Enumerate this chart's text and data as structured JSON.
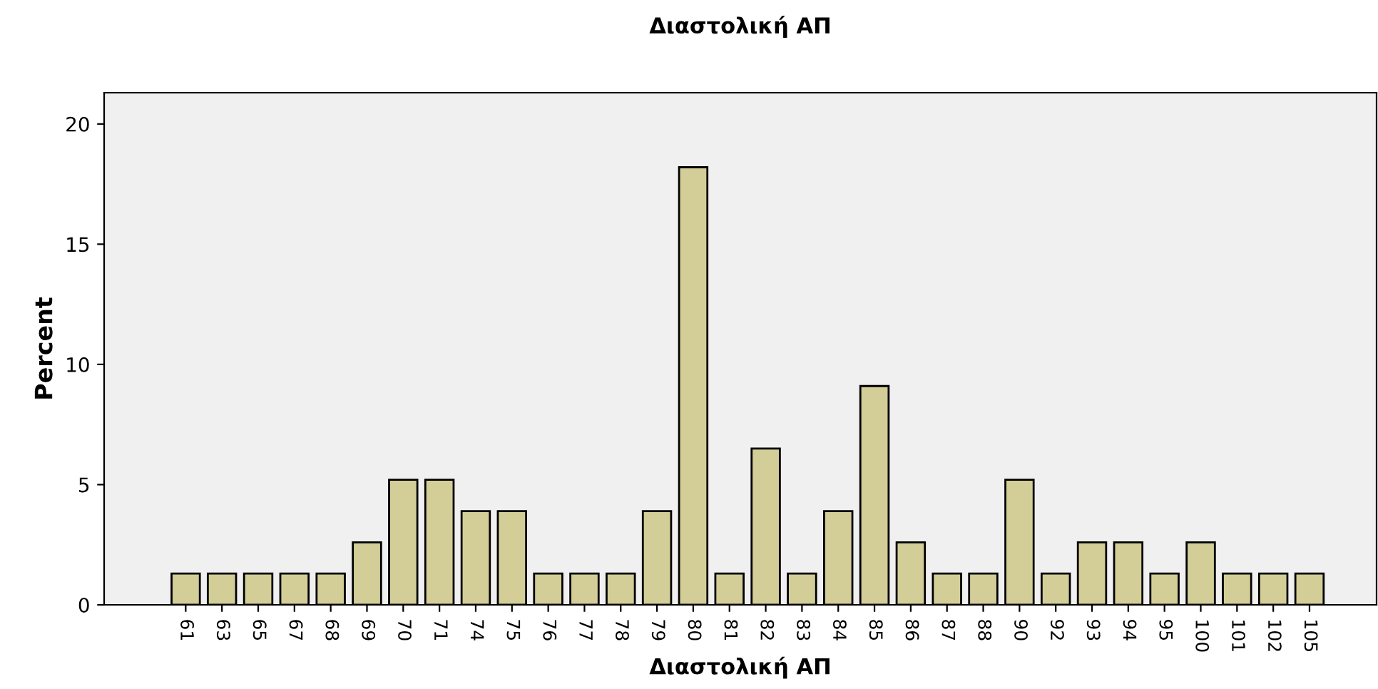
{
  "chart_data": {
    "type": "bar",
    "title": "Διαστολική ΑΠ",
    "xlabel": "Διαστολική ΑΠ",
    "ylabel": "Percent",
    "categories": [
      "61",
      "63",
      "65",
      "67",
      "68",
      "69",
      "70",
      "71",
      "74",
      "75",
      "76",
      "77",
      "78",
      "79",
      "80",
      "81",
      "82",
      "83",
      "84",
      "85",
      "86",
      "87",
      "88",
      "90",
      "92",
      "93",
      "94",
      "95",
      "100",
      "101",
      "102",
      "105"
    ],
    "values": [
      1.3,
      1.3,
      1.3,
      1.3,
      1.3,
      2.6,
      5.2,
      5.2,
      3.9,
      3.9,
      1.3,
      1.3,
      1.3,
      3.9,
      18.2,
      1.3,
      6.5,
      1.3,
      3.9,
      9.1,
      2.6,
      1.3,
      1.3,
      5.2,
      1.3,
      2.6,
      2.6,
      1.3,
      2.6,
      1.3,
      1.3,
      1.3
    ],
    "color": "#d3ce97",
    "ylim": [
      0,
      21.3
    ],
    "yticks": [
      0,
      5,
      10,
      15,
      20
    ],
    "grid": false,
    "legend": false
  }
}
